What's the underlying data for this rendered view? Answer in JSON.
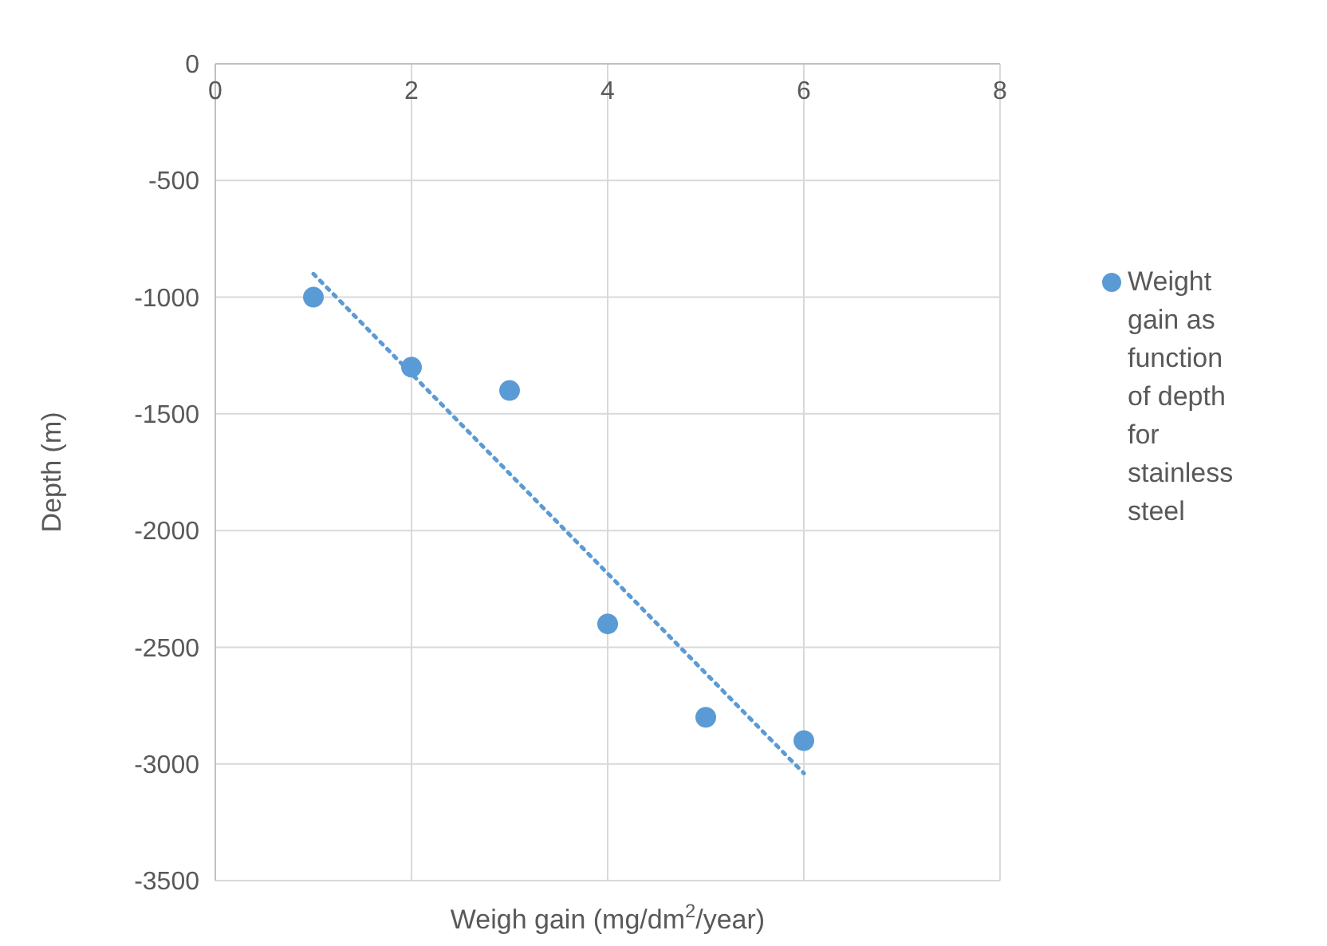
{
  "chart_data": {
    "type": "scatter",
    "xlabel": "Weigh gain (mg/dm$^{2}$/year)",
    "ylabel": "Depth (m)",
    "xlim": [
      0,
      8
    ],
    "xticks": [
      0,
      2,
      4,
      6,
      8
    ],
    "ylim": [
      -3500,
      0
    ],
    "yticks": [
      -3500,
      -3000,
      -2500,
      -2000,
      -1500,
      -1000,
      -500,
      0
    ],
    "grid": true,
    "legend": "right",
    "marker": "circle",
    "series": [
      {
        "name": "Weight gain as function of depth for stainless steel",
        "color": "#5b9bd5",
        "x": [
          1,
          2,
          3,
          4,
          5,
          6
        ],
        "values": [
          -1000,
          -1300,
          -1400,
          -2400,
          -2800,
          -2900
        ]
      },
      {
        "type": "line",
        "line_style": "dotted",
        "marker": "none",
        "color": "#5b9bd5",
        "x": [
          1,
          6
        ],
        "values": [
          -900,
          -3040
        ]
      }
    ]
  }
}
